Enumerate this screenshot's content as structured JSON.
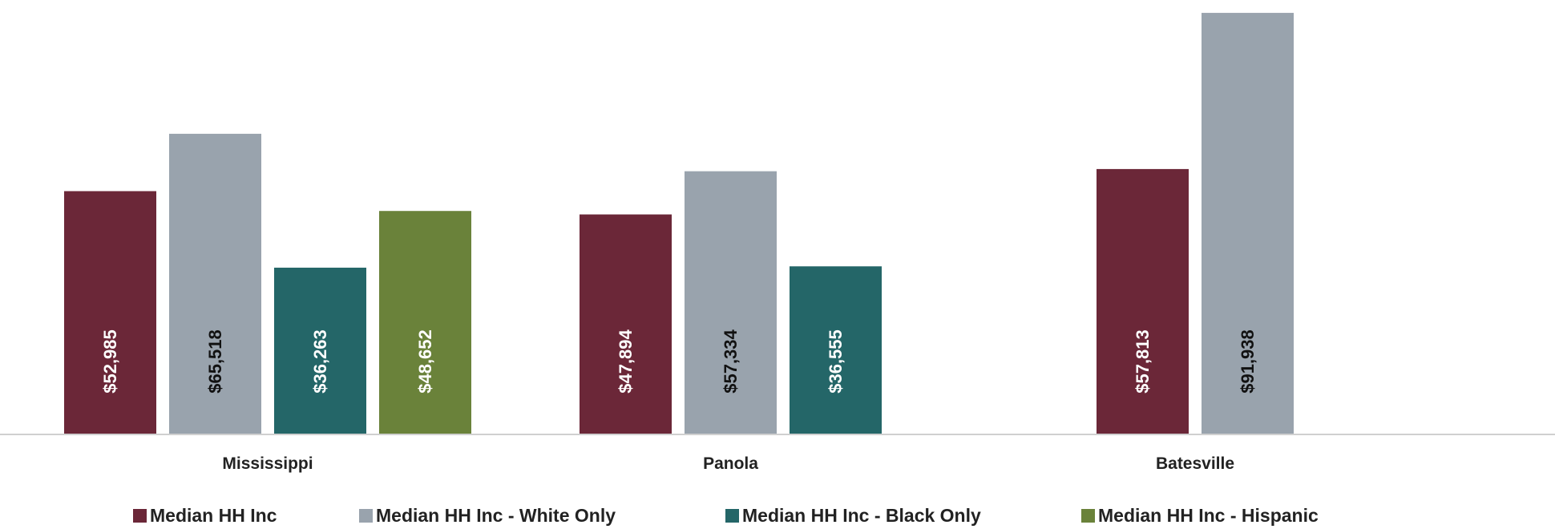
{
  "chart_data": {
    "type": "bar",
    "categories": [
      "Mississippi",
      "Panola",
      "Batesville"
    ],
    "series": [
      {
        "name": "Median HH Inc",
        "color": "#6B2738",
        "values": [
          52985,
          47894,
          57813
        ],
        "labels": [
          "$52,985",
          "$47,894",
          "$57,813"
        ]
      },
      {
        "name": "Median HH Inc - White Only",
        "color": "#99A3AD",
        "values": [
          65518,
          57334,
          91938
        ],
        "labels": [
          "$65,518",
          "$57,334",
          "$91,938"
        ]
      },
      {
        "name": "Median HH Inc - Black Only",
        "color": "#246668",
        "values": [
          36263,
          36555,
          null
        ],
        "labels": [
          "$36,263",
          "$36,555",
          ""
        ]
      },
      {
        "name": "Median HH Inc - Hispanic",
        "color": "#6A823A",
        "values": [
          48652,
          null,
          null
        ],
        "labels": [
          "$48,652",
          "",
          ""
        ]
      }
    ],
    "ylim": [
      0,
      93000
    ],
    "grid": false,
    "legend_position": "bottom"
  }
}
